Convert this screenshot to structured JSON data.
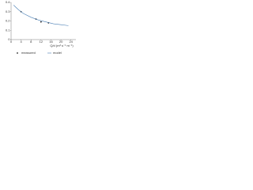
{
  "chart_data": {
    "type": "scatter",
    "x_label": "Q/d (m³ s⁻¹ m⁻¹)",
    "xlim": [
      0,
      26
    ],
    "xticks": [
      0,
      4,
      8,
      12,
      16,
      20,
      24
    ],
    "ylim": [
      0,
      0.4
    ],
    "yticks": [
      0,
      0.1,
      0.2,
      0.3,
      0.4
    ],
    "legend": "bottom",
    "series": [
      {
        "name": "measured",
        "color": "#222222",
        "style": "markers",
        "x": [
          4,
          10,
          12,
          15
        ],
        "values": [
          0.3,
          0.22,
          0.19,
          0.18
        ]
      },
      {
        "name": "model",
        "color": "#4a7fb5",
        "style": "line",
        "x": [
          1,
          3,
          5,
          8,
          11,
          14,
          17,
          20,
          23
        ],
        "values": [
          0.37,
          0.32,
          0.28,
          0.24,
          0.21,
          0.19,
          0.17,
          0.16,
          0.15
        ]
      }
    ]
  }
}
